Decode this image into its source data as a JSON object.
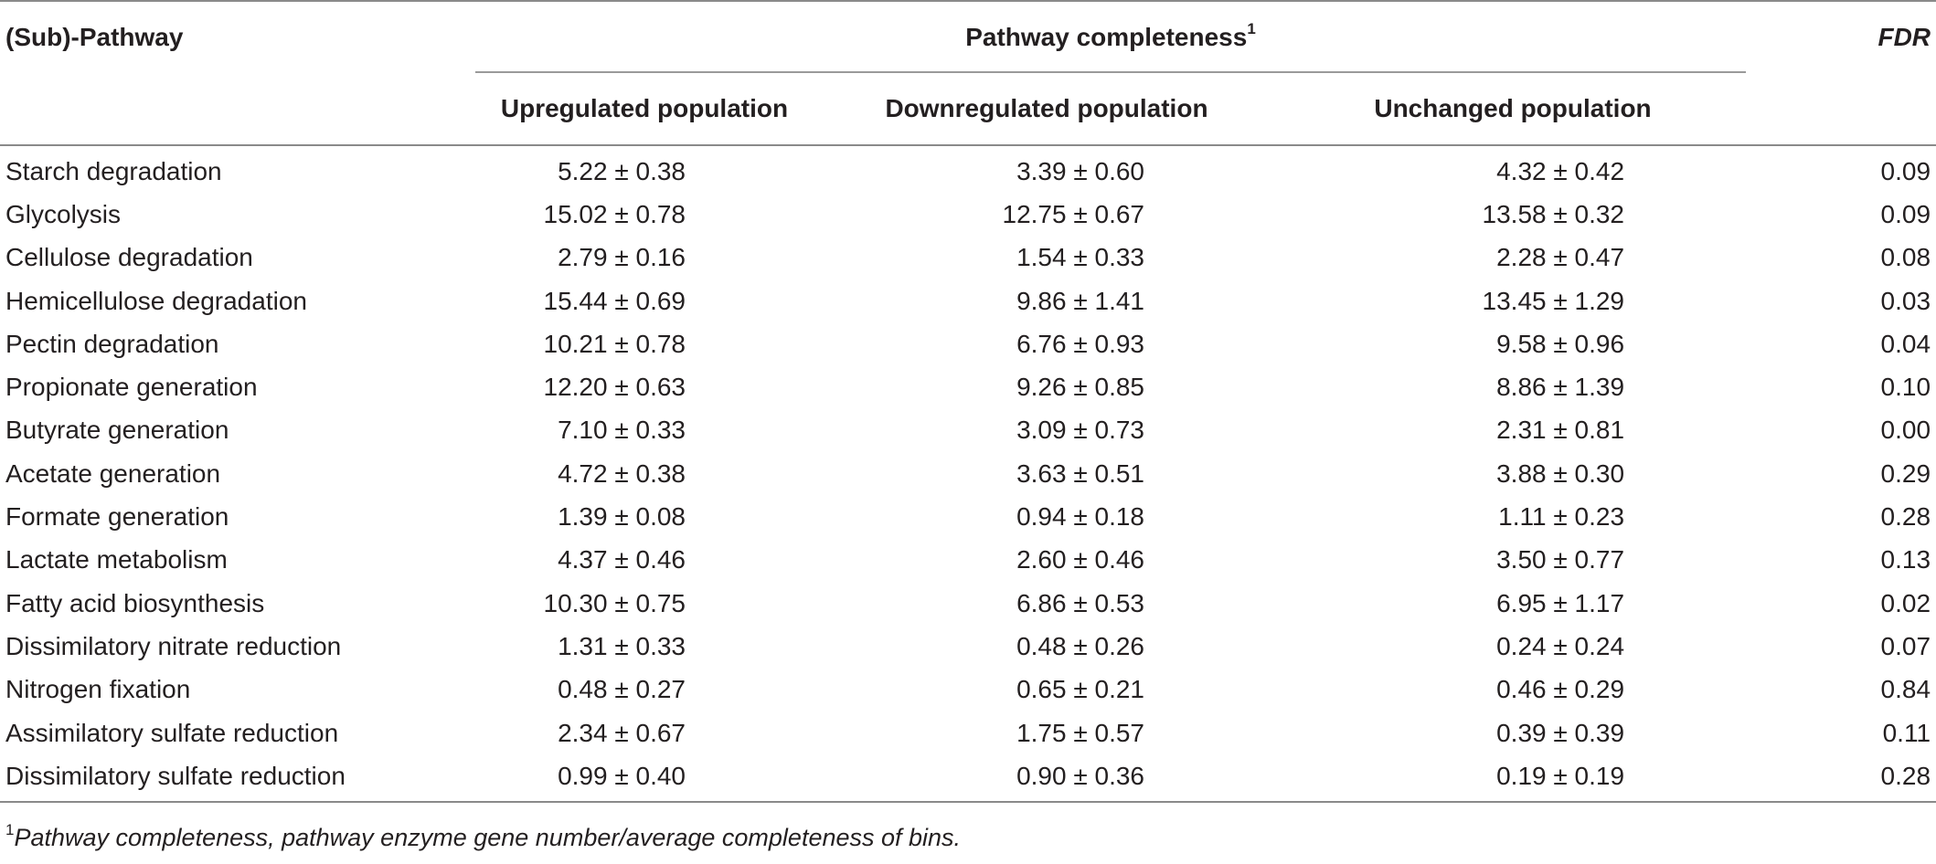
{
  "table": {
    "header": {
      "pathway_col": "(Sub)-Pathway",
      "group_title": "Pathway completeness",
      "group_footnote_mark": "1",
      "fdr_col": "FDR",
      "sub_up": "Upregulated population",
      "sub_down": "Downregulated population",
      "sub_unch": "Unchanged population"
    },
    "rows": [
      {
        "pathway": "Starch degradation",
        "up": "5.22 ± 0.38",
        "down": "3.39 ± 0.60",
        "unch": "4.32 ± 0.42",
        "fdr": "0.09"
      },
      {
        "pathway": "Glycolysis",
        "up": "15.02 ± 0.78",
        "down": "12.75 ± 0.67",
        "unch": "13.58 ± 0.32",
        "fdr": "0.09"
      },
      {
        "pathway": "Cellulose degradation",
        "up": "2.79 ± 0.16",
        "down": "1.54 ± 0.33",
        "unch": "2.28 ± 0.47",
        "fdr": "0.08"
      },
      {
        "pathway": "Hemicellulose degradation",
        "up": "15.44 ± 0.69",
        "down": "9.86 ± 1.41",
        "unch": "13.45 ± 1.29",
        "fdr": "0.03"
      },
      {
        "pathway": "Pectin degradation",
        "up": "10.21 ± 0.78",
        "down": "6.76 ± 0.93",
        "unch": "9.58 ± 0.96",
        "fdr": "0.04"
      },
      {
        "pathway": "Propionate generation",
        "up": "12.20 ± 0.63",
        "down": "9.26 ± 0.85",
        "unch": "8.86 ± 1.39",
        "fdr": "0.10"
      },
      {
        "pathway": "Butyrate generation",
        "up": "7.10 ± 0.33",
        "down": "3.09 ± 0.73",
        "unch": "2.31 ± 0.81",
        "fdr": "0.00"
      },
      {
        "pathway": "Acetate generation",
        "up": "4.72 ± 0.38",
        "down": "3.63 ± 0.51",
        "unch": "3.88 ± 0.30",
        "fdr": "0.29"
      },
      {
        "pathway": "Formate generation",
        "up": "1.39 ± 0.08",
        "down": "0.94 ± 0.18",
        "unch": "1.11 ± 0.23",
        "fdr": "0.28"
      },
      {
        "pathway": "Lactate metabolism",
        "up": "4.37 ± 0.46",
        "down": "2.60 ± 0.46",
        "unch": "3.50 ± 0.77",
        "fdr": "0.13"
      },
      {
        "pathway": "Fatty acid biosynthesis",
        "up": "10.30 ± 0.75",
        "down": "6.86 ± 0.53",
        "unch": "6.95 ± 1.17",
        "fdr": "0.02"
      },
      {
        "pathway": "Dissimilatory nitrate reduction",
        "up": "1.31 ± 0.33",
        "down": "0.48 ± 0.26",
        "unch": "0.24 ± 0.24",
        "fdr": "0.07"
      },
      {
        "pathway": "Nitrogen fixation",
        "up": "0.48 ± 0.27",
        "down": "0.65 ± 0.21",
        "unch": "0.46 ± 0.29",
        "fdr": "0.84"
      },
      {
        "pathway": "Assimilatory sulfate reduction",
        "up": "2.34 ± 0.67",
        "down": "1.75 ± 0.57",
        "unch": "0.39 ± 0.39",
        "fdr": "0.11"
      },
      {
        "pathway": "Dissimilatory sulfate reduction",
        "up": "0.99 ± 0.40",
        "down": "0.90 ± 0.36",
        "unch": "0.19 ± 0.19",
        "fdr": "0.28"
      }
    ]
  },
  "footnote": {
    "mark": "1",
    "text": "Pathway completeness, pathway enzyme gene number/average completeness of bins."
  }
}
